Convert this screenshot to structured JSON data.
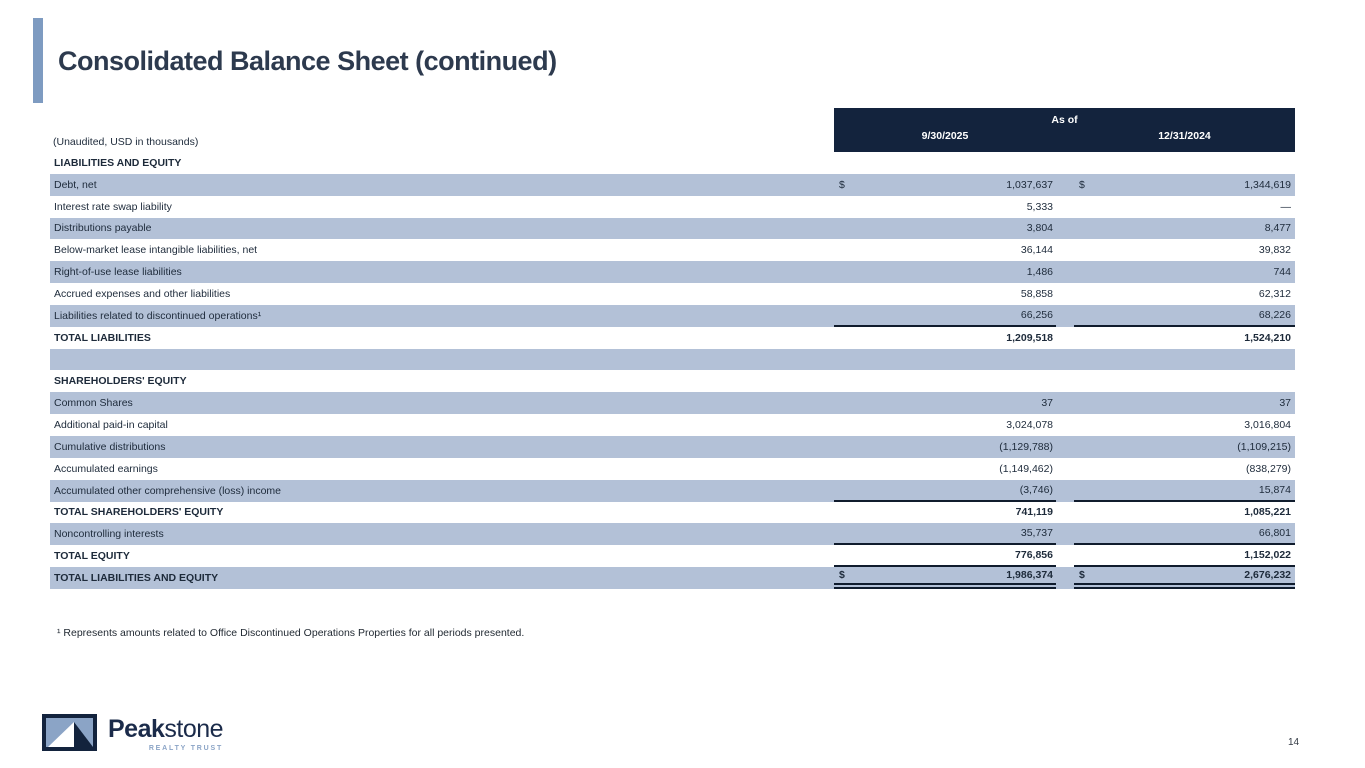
{
  "header": {
    "title": "Consolidated Balance Sheet (continued)"
  },
  "table": {
    "unaudited_note": "(Unaudited, USD in thousands)",
    "as_of_label": "As of",
    "currency_symbol": "$",
    "columns": [
      "9/30/2025",
      "12/31/2024"
    ],
    "rows": [
      {
        "type": "section",
        "label": "LIABILITIES AND EQUITY",
        "shaded": false,
        "dollar": false,
        "v1": "",
        "v2": "",
        "rule": "none"
      },
      {
        "type": "item",
        "label": "Debt, net",
        "shaded": true,
        "dollar": true,
        "v1": "1,037,637",
        "v2": "1,344,619",
        "rule": "none"
      },
      {
        "type": "item",
        "label": "Interest rate swap liability",
        "shaded": false,
        "dollar": false,
        "v1": "5,333",
        "v2": "—",
        "rule": "none"
      },
      {
        "type": "item",
        "label": "Distributions payable",
        "shaded": true,
        "dollar": false,
        "v1": "3,804",
        "v2": "8,477",
        "rule": "none"
      },
      {
        "type": "item",
        "label": "Below-market lease intangible liabilities, net",
        "shaded": false,
        "dollar": false,
        "v1": "36,144",
        "v2": "39,832",
        "rule": "none"
      },
      {
        "type": "item",
        "label": "Right-of-use lease liabilities",
        "shaded": true,
        "dollar": false,
        "v1": "1,486",
        "v2": "744",
        "rule": "none"
      },
      {
        "type": "item",
        "label": "Accrued expenses and other liabilities",
        "shaded": false,
        "dollar": false,
        "v1": "58,858",
        "v2": "62,312",
        "rule": "none"
      },
      {
        "type": "item",
        "label": "Liabilities related to discontinued operations¹",
        "shaded": true,
        "dollar": false,
        "v1": "66,256",
        "v2": "68,226",
        "rule": "single"
      },
      {
        "type": "total",
        "label": "TOTAL LIABILITIES",
        "shaded": false,
        "dollar": false,
        "v1": "1,209,518",
        "v2": "1,524,210",
        "rule": "none"
      },
      {
        "type": "spacer",
        "label": "",
        "shaded": true,
        "dollar": false,
        "v1": "",
        "v2": "",
        "rule": "none"
      },
      {
        "type": "section",
        "label": "SHAREHOLDERS' EQUITY",
        "shaded": false,
        "dollar": false,
        "v1": "",
        "v2": "",
        "rule": "none"
      },
      {
        "type": "item",
        "label": "Common Shares",
        "shaded": true,
        "dollar": false,
        "v1": "37",
        "v2": "37",
        "rule": "none"
      },
      {
        "type": "item",
        "label": "Additional paid-in capital",
        "shaded": false,
        "dollar": false,
        "v1": "3,024,078",
        "v2": "3,016,804",
        "rule": "none"
      },
      {
        "type": "item",
        "label": "Cumulative distributions",
        "shaded": true,
        "dollar": false,
        "v1": "(1,129,788)",
        "v2": "(1,109,215)",
        "rule": "none"
      },
      {
        "type": "item",
        "label": "Accumulated earnings",
        "shaded": false,
        "dollar": false,
        "v1": "(1,149,462)",
        "v2": "(838,279)",
        "rule": "none"
      },
      {
        "type": "item",
        "label": "Accumulated other comprehensive (loss) income",
        "shaded": true,
        "dollar": false,
        "v1": "(3,746)",
        "v2": "15,874",
        "rule": "single"
      },
      {
        "type": "total",
        "label": "TOTAL SHAREHOLDERS' EQUITY",
        "shaded": false,
        "dollar": false,
        "v1": "741,119",
        "v2": "1,085,221",
        "rule": "none"
      },
      {
        "type": "item",
        "label": "Noncontrolling interests",
        "shaded": true,
        "dollar": false,
        "v1": "35,737",
        "v2": "66,801",
        "rule": "single"
      },
      {
        "type": "total",
        "label": "TOTAL EQUITY",
        "shaded": false,
        "dollar": false,
        "v1": "776,856",
        "v2": "1,152,022",
        "rule": "single"
      },
      {
        "type": "total",
        "label": "TOTAL LIABILITIES AND EQUITY",
        "shaded": true,
        "dollar": true,
        "v1": "1,986,374",
        "v2": "2,676,232",
        "rule": "double"
      }
    ]
  },
  "footnote": "¹ Represents amounts related to Office Discontinued Operations Properties for all periods presented.",
  "logo": {
    "name_bold": "Peak",
    "name_light": "stone",
    "tagline": "REALTY TRUST"
  },
  "page_number": "14",
  "colors": {
    "header_navy": "#13233d",
    "row_shade": "#b3c1d7",
    "accent_bar": "#7e9bc1",
    "title_text": "#2d3a4e",
    "logo_navy": "#1b2b4a",
    "logo_light_blue": "#8ba4c6"
  }
}
